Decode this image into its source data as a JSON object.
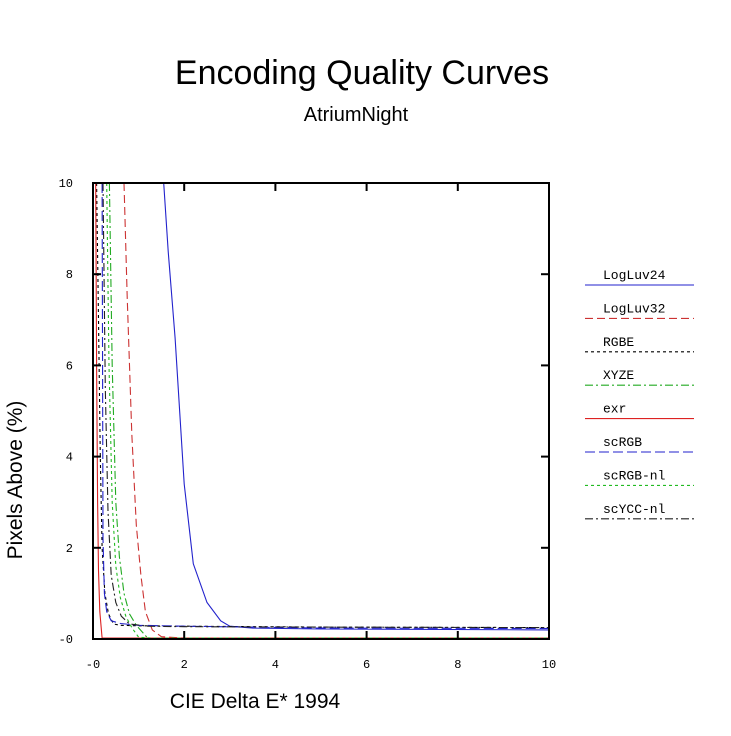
{
  "chart_data": {
    "type": "line",
    "title": "Encoding Quality Curves",
    "subtitle": "AtriumNight",
    "xlabel": "CIE Delta E* 1994",
    "ylabel": "Pixels Above (%)",
    "xlim": [
      0,
      10
    ],
    "ylim": [
      0,
      10
    ],
    "xticks": [
      0,
      2,
      4,
      6,
      8,
      10
    ],
    "xtick_labels": [
      "-0",
      "2",
      "4",
      "6",
      "8",
      "10"
    ],
    "yticks": [
      0,
      2,
      4,
      6,
      8,
      10
    ],
    "ytick_labels": [
      "-0",
      "2",
      "4",
      "6",
      "8",
      "10"
    ],
    "grid": false,
    "legend": "right",
    "series": [
      {
        "name": "LogLuv24",
        "color": "#2222cc",
        "dash": "solid",
        "x": [
          1.55,
          1.65,
          1.8,
          2.0,
          2.2,
          2.5,
          2.8,
          3.0,
          3.5,
          5,
          10
        ],
        "y": [
          10,
          8.5,
          6.6,
          3.4,
          1.65,
          0.8,
          0.4,
          0.28,
          0.24,
          0.22,
          0.2
        ]
      },
      {
        "name": "LogLuv32",
        "color": "#cc3333",
        "dash": "8,4",
        "x": [
          0.68,
          0.75,
          0.85,
          0.95,
          1.05,
          1.15,
          1.3,
          1.5,
          2,
          10
        ],
        "y": [
          10,
          7.5,
          4.5,
          2.5,
          1.4,
          0.6,
          0.2,
          0.05,
          0.02,
          0.02
        ]
      },
      {
        "name": "RGBE",
        "color": "#000000",
        "dash": "3,3",
        "x": [
          0.08,
          0.12,
          0.16,
          0.2,
          0.26,
          0.34,
          0.45,
          0.6,
          1,
          2,
          5,
          10
        ],
        "y": [
          10,
          7,
          4,
          2,
          1,
          0.55,
          0.33,
          0.3,
          0.29,
          0.28,
          0.26,
          0.25
        ]
      },
      {
        "name": "XYZE",
        "color": "#22aa22",
        "dash": "8,3,2,3",
        "x": [
          0.36,
          0.42,
          0.5,
          0.58,
          0.68,
          0.8,
          0.95,
          1.2,
          2,
          10
        ],
        "y": [
          10,
          6,
          3,
          1.8,
          1.0,
          0.55,
          0.3,
          0.02,
          0.02,
          0.02
        ]
      },
      {
        "name": "exr",
        "color": "#dd2222",
        "dash": "solid",
        "x": [
          0.06,
          0.08,
          0.1,
          0.12,
          0.15,
          0.2,
          10
        ],
        "y": [
          10,
          6,
          3,
          1.5,
          0.6,
          0.02,
          0.02
        ]
      },
      {
        "name": "scRGB",
        "color": "#2222cc",
        "dash": "10,4",
        "x": [
          0.2,
          0.22,
          0.25,
          0.3,
          0.4,
          0.6,
          1.0,
          2,
          5,
          10
        ],
        "y": [
          10,
          2.2,
          1.0,
          0.6,
          0.4,
          0.34,
          0.3,
          0.28,
          0.24,
          0.23
        ]
      },
      {
        "name": "scRGB-nl",
        "color": "#22bb22",
        "dash": "3,3",
        "x": [
          0.3,
          0.35,
          0.42,
          0.5,
          0.6,
          0.72,
          0.85,
          1.0,
          1.3,
          10
        ],
        "y": [
          10,
          6,
          3,
          1.6,
          0.9,
          0.5,
          0.25,
          0.04,
          0.02,
          0.02
        ]
      },
      {
        "name": "scYCC-nl",
        "color": "#222222",
        "dash": "8,3,2,3",
        "x": [
          0.22,
          0.27,
          0.33,
          0.4,
          0.5,
          0.62,
          0.8,
          1.2,
          2,
          5,
          10
        ],
        "y": [
          10,
          5.5,
          2.8,
          1.4,
          0.8,
          0.5,
          0.33,
          0.28,
          0.27,
          0.26,
          0.25
        ]
      }
    ]
  }
}
